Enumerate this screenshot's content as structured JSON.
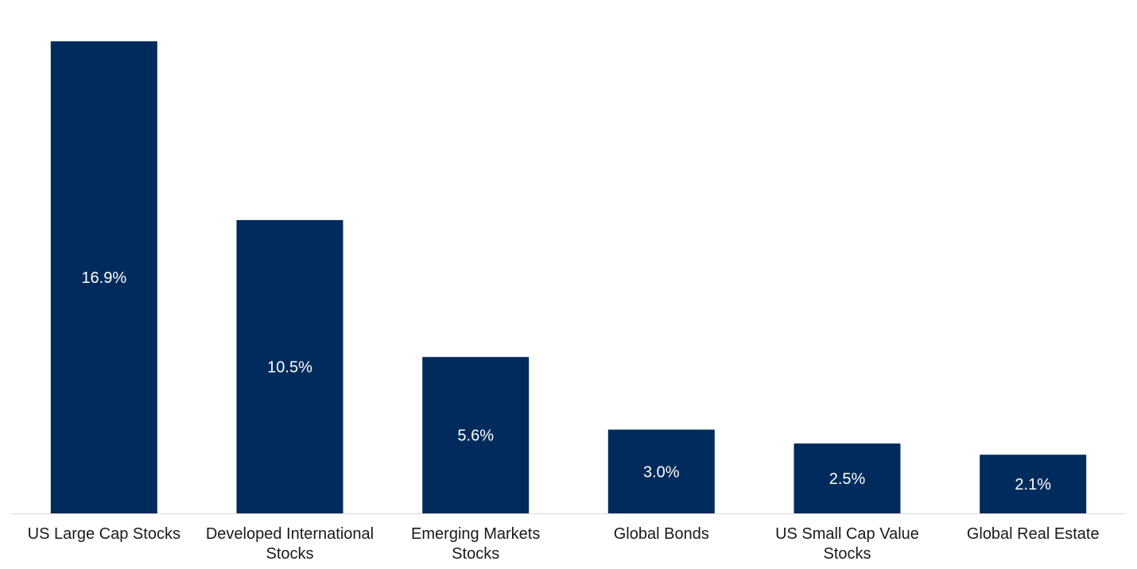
{
  "chart_data": {
    "type": "bar",
    "categories": [
      [
        "US Large Cap Stocks"
      ],
      [
        "Developed International",
        "Stocks"
      ],
      [
        "Emerging Markets",
        "Stocks"
      ],
      [
        "Global Bonds"
      ],
      [
        "US Small Cap Value",
        "Stocks"
      ],
      [
        "Global Real Estate"
      ]
    ],
    "values": [
      16.9,
      10.5,
      5.6,
      3.0,
      2.5,
      2.1
    ],
    "data_labels": [
      "16.9%",
      "10.5%",
      "5.6%",
      "3.0%",
      "2.5%",
      "2.1%"
    ],
    "title": "",
    "xlabel": "",
    "ylabel": "",
    "ylim": [
      0,
      16.9
    ],
    "grid": false,
    "legend": "none"
  },
  "colors": {
    "bar": "#002b5c",
    "baseline": "#d9d9d9"
  }
}
